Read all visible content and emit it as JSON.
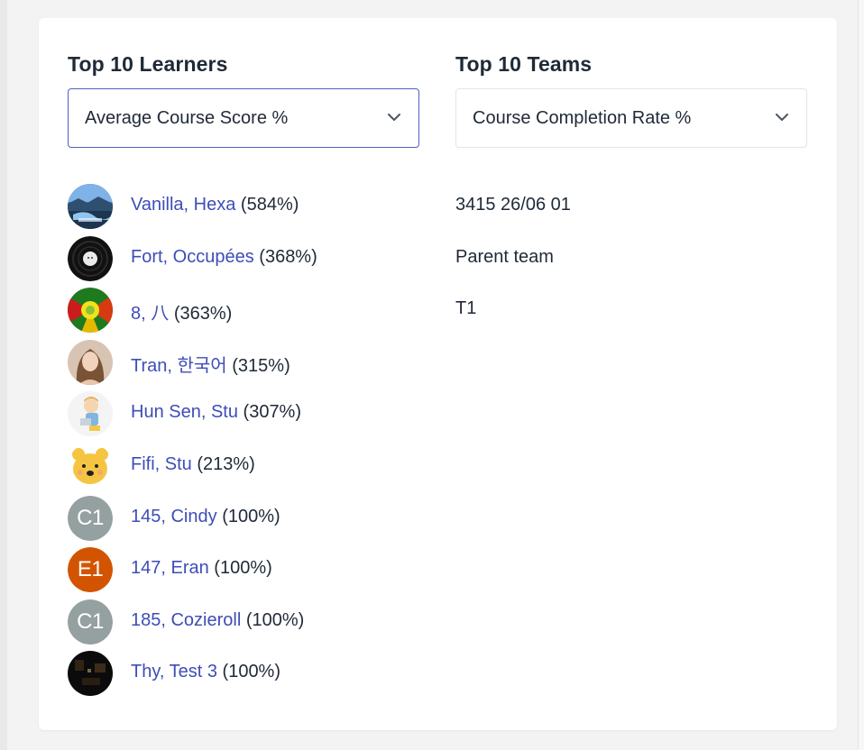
{
  "learners_panel": {
    "title": "Top 10 Learners",
    "metric_select": {
      "value": "Average Course Score %"
    },
    "items": [
      {
        "name": "Vanilla, Hexa",
        "score": "(584%)",
        "avatar_type": "photo-landscape"
      },
      {
        "name": "Fort, Occupées",
        "score": "(368%)",
        "avatar_type": "photo-vinyl"
      },
      {
        "name": "8, 八",
        "score": "(363%)",
        "avatar_type": "photo-psychedelic"
      },
      {
        "name": "Tran, 한국어",
        "score": "(315%)",
        "avatar_type": "photo-portrait"
      },
      {
        "name": "Hun Sen, Stu",
        "score": "(307%)",
        "avatar_type": "photo-cartoon-boy"
      },
      {
        "name": "Fifi, Stu",
        "score": "(213%)",
        "avatar_type": "photo-cartoon-bear"
      },
      {
        "name": "145, Cindy",
        "score": "(100%)",
        "initials": "C1",
        "avatar_color": "#95a0a0"
      },
      {
        "name": "147, Eran",
        "score": "(100%)",
        "initials": "E1",
        "avatar_color": "#d35400"
      },
      {
        "name": "185, Cozieroll",
        "score": "(100%)",
        "initials": "C1",
        "avatar_color": "#95a0a0"
      },
      {
        "name": "Thy, Test 3",
        "score": "(100%)",
        "avatar_type": "photo-dark"
      }
    ]
  },
  "teams_panel": {
    "title": "Top 10 Teams",
    "metric_select": {
      "value": "Course Completion Rate %"
    },
    "items": [
      {
        "name": "3415 26/06 01"
      },
      {
        "name": "Parent team"
      },
      {
        "name": "T1"
      }
    ]
  },
  "colors": {
    "link": "#3d4db7",
    "focus_border": "#4e5ec3",
    "text": "#1f2937"
  }
}
